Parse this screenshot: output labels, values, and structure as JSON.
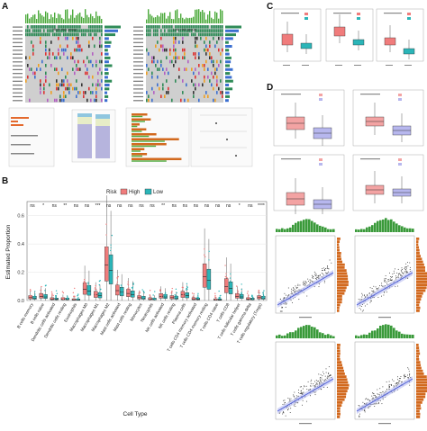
{
  "panels": {
    "a": {
      "letter": "A",
      "left_title": "High risk group",
      "right_title": "Low risk group"
    },
    "b": {
      "letter": "B",
      "legend_title": "Risk",
      "legend_high": "High",
      "legend_low": "Low",
      "ylabel": "Estimated Proportion",
      "xlabel": "Cell Type",
      "yticks": [
        "0.6",
        "0.4",
        "0.2",
        "0.0"
      ],
      "cell_types": [
        "B cells memory",
        "B cells naive",
        "Dendritic cells activated",
        "Dendritic cells resting",
        "Eosinophils",
        "Macrophages M0",
        "Macrophages M1",
        "Macrophages M2",
        "Mast cells activated",
        "Mast cells resting",
        "Monocytes",
        "Neutrophils",
        "NK cells activated",
        "NK cells resting",
        "Plasma cells",
        "T cells CD4 memory activated",
        "T cells CD4 memory resting",
        "T cells CD4 naive",
        "T cells CD8",
        "T cells follicular helper",
        "T cells gamma delta",
        "T cells regulatory (Tregs)"
      ],
      "significance": [
        "ns",
        "*",
        "ns",
        "**",
        "ns",
        "ns",
        "***",
        "ns",
        "ns",
        "ns",
        "ns",
        "ns",
        "**",
        "ns",
        "ns",
        "ns",
        "ns",
        "ns",
        "ns",
        "*",
        "ns",
        "****"
      ]
    },
    "c": {
      "letter": "C"
    },
    "d": {
      "letter": "D"
    }
  },
  "colors": {
    "high": "#f07c7c",
    "low": "#2bb5b8",
    "oncoprint_bg": "#cfcfcf",
    "bar_green": "#4caa3c",
    "scatter_line": "#4a5bd6",
    "hist_green": "#3a9a3a",
    "hist_orange": "#d2691e"
  }
}
